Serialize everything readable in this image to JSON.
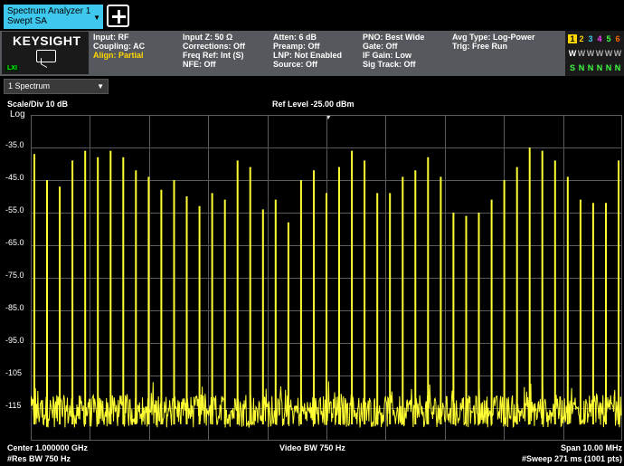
{
  "tabs": {
    "main": {
      "line1": "Spectrum Analyzer 1",
      "line2": "Swept SA"
    },
    "chevron": "▼",
    "add_icon": "plus-icon"
  },
  "logo": {
    "text": "KEYSIGHT",
    "badge": "LXI"
  },
  "settings": {
    "group1": [
      "Input: RF",
      "Coupling: AC",
      "Align: Partial"
    ],
    "group2": [
      "Input Z: 50 Ω",
      "Corrections: Off",
      "Freq Ref: Int (S)",
      "NFE: Off"
    ],
    "group3": [
      "Atten: 6 dB",
      "Preamp: Off",
      "LNP: Not Enabled",
      "Source: Off"
    ],
    "group4": [
      "PNO: Best Wide",
      "Gate: Off",
      "IF Gain: Low",
      "Sig Track: Off"
    ],
    "group5": [
      "Avg Type: Log-Power",
      "Trig: Free Run"
    ]
  },
  "trace_status": {
    "numbers": [
      "1",
      "2",
      "3",
      "4",
      "5",
      "6"
    ],
    "number_colors": [
      "#000000",
      "#ffd700",
      "#3fc8ee",
      "#ff40ff",
      "#40ff40",
      "#ff6a00"
    ],
    "types": [
      "W",
      "W",
      "W",
      "W",
      "W",
      "W"
    ],
    "detectors": [
      "S",
      "N",
      "N",
      "N",
      "N",
      "N"
    ]
  },
  "trace_selector": {
    "label": "1 Spectrum",
    "chevron": "▼"
  },
  "display": {
    "scale_div": "Scale/Div 10 dB",
    "scale_type": "Log",
    "ref_level": "Ref Level -25.00 dBm",
    "y_ticks": [
      "-35.0",
      "-45.0",
      "-55.0",
      "-65.0",
      "-75.0",
      "-85.0",
      "-95.0",
      "-105",
      "-115"
    ]
  },
  "footer": {
    "center": "Center 1.000000 GHz",
    "res_bw": "#Res BW 750 Hz",
    "video_bw": "Video BW 750 Hz",
    "span": "Span 10.00 MHz",
    "sweep": "#Sweep 271 ms (1001 pts)"
  },
  "colors": {
    "trace": "#ffff33",
    "grid": "#5a5a5a",
    "accent": "#3fc8ee"
  },
  "chart_data": {
    "type": "line",
    "title": "",
    "xlabel": "",
    "ylabel": "",
    "x_center_hz": 1000000000,
    "x_span_hz": 10000000,
    "ylim": [
      -125,
      -25
    ],
    "y_scale": "log 10 dB/div",
    "grid": true,
    "noise_floor_dbm": -116,
    "peak_levels_dbm": [
      -37,
      -45,
      -47,
      -39,
      -36,
      -38,
      -36,
      -38,
      -42,
      -44,
      -48,
      -45,
      -50,
      -53,
      -49,
      -51,
      -39,
      -41,
      -54,
      -51,
      -58,
      -45,
      -42,
      -49,
      -41,
      -36,
      -39,
      -49,
      -49,
      -44,
      -42,
      -38,
      -44,
      -55,
      -56,
      -55,
      -51,
      -45,
      -41,
      -35,
      -36,
      -39,
      -44,
      -51,
      -52,
      -52,
      -39
    ]
  }
}
